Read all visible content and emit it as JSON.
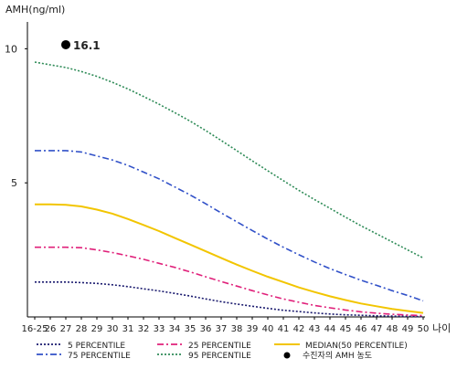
{
  "chart_data": {
    "type": "line",
    "title": "",
    "ylabel": "AMH(ng/ml)",
    "xlabel": "나이",
    "ylim": [
      0,
      11
    ],
    "yticks": [
      5,
      10
    ],
    "x": [
      "16-25",
      "26",
      "27",
      "28",
      "29",
      "30",
      "31",
      "32",
      "33",
      "34",
      "35",
      "36",
      "37",
      "38",
      "39",
      "40",
      "41",
      "42",
      "43",
      "44",
      "45",
      "46",
      "47",
      "48",
      "49",
      "50"
    ],
    "series": [
      {
        "name": "5 PERCENTILE",
        "color": "#1a1a6e",
        "dash": "2,2",
        "values": [
          1.3,
          1.3,
          1.3,
          1.28,
          1.25,
          1.2,
          1.13,
          1.05,
          0.97,
          0.88,
          0.78,
          0.67,
          0.57,
          0.48,
          0.4,
          0.32,
          0.25,
          0.2,
          0.15,
          0.11,
          0.08,
          0.06,
          0.04,
          0.03,
          0.02,
          0.01
        ]
      },
      {
        "name": "25 PERCENTILE",
        "color": "#e0207a",
        "dash": "7,3,2,3",
        "values": [
          2.6,
          2.6,
          2.6,
          2.58,
          2.5,
          2.4,
          2.28,
          2.15,
          2.0,
          1.85,
          1.68,
          1.5,
          1.32,
          1.15,
          0.98,
          0.82,
          0.67,
          0.55,
          0.43,
          0.34,
          0.26,
          0.19,
          0.14,
          0.1,
          0.07,
          0.05
        ]
      },
      {
        "name": "MEDIAN(50 PERCENTILE)",
        "color": "#f2c500",
        "dash": "",
        "values": [
          4.2,
          4.2,
          4.18,
          4.12,
          4.0,
          3.85,
          3.65,
          3.43,
          3.2,
          2.95,
          2.7,
          2.45,
          2.2,
          1.95,
          1.72,
          1.5,
          1.3,
          1.1,
          0.93,
          0.77,
          0.63,
          0.5,
          0.4,
          0.3,
          0.22,
          0.15
        ]
      },
      {
        "name": "75 PERCENTILE",
        "color": "#3050c8",
        "dash": "7,3,2,3",
        "values": [
          6.2,
          6.2,
          6.2,
          6.15,
          6.0,
          5.85,
          5.65,
          5.4,
          5.15,
          4.85,
          4.55,
          4.22,
          3.88,
          3.55,
          3.22,
          2.9,
          2.6,
          2.32,
          2.05,
          1.8,
          1.58,
          1.37,
          1.18,
          0.98,
          0.8,
          0.6
        ]
      },
      {
        "name": "95 PERCENTILE",
        "color": "#2e8b57",
        "dash": "2,2",
        "values": [
          9.5,
          9.4,
          9.3,
          9.15,
          8.97,
          8.75,
          8.5,
          8.22,
          7.93,
          7.62,
          7.3,
          6.95,
          6.58,
          6.2,
          5.82,
          5.45,
          5.08,
          4.72,
          4.38,
          4.05,
          3.72,
          3.4,
          3.1,
          2.8,
          2.5,
          2.2
        ]
      }
    ],
    "marker": {
      "name": "수진자의 AMH 농도",
      "label": "16.1",
      "x": "27",
      "y": 10.15,
      "color": "#000000"
    },
    "legend_position": "bottom",
    "grid": false
  }
}
